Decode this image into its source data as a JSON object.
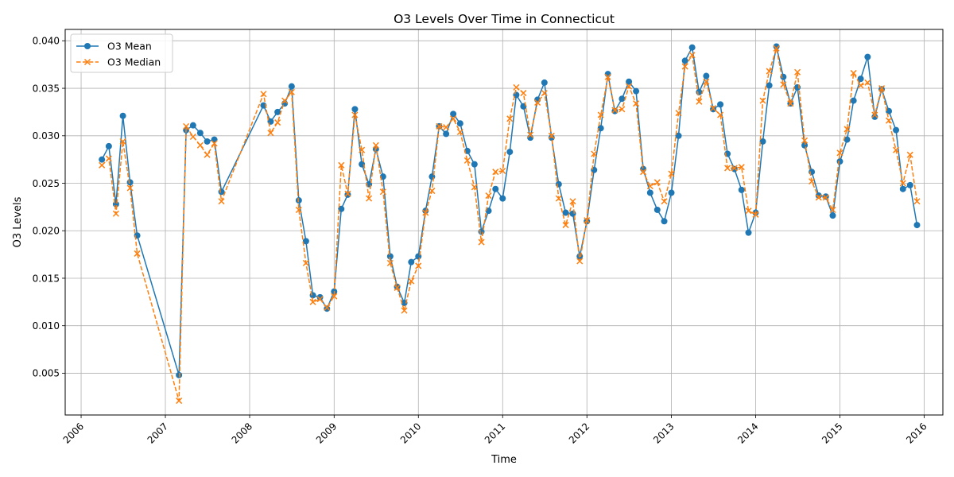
{
  "chart_data": {
    "type": "line",
    "title": "O3 Levels Over Time in Connecticut",
    "xlabel": "Time",
    "ylabel": "O3 Levels",
    "xlim": [
      "2005-10-24",
      "2016-03-22"
    ],
    "ylim": [
      0.0006,
      0.0412
    ],
    "x_ticks": [
      "2006",
      "2007",
      "2008",
      "2009",
      "2010",
      "2011",
      "2012",
      "2013",
      "2014",
      "2015",
      "2016"
    ],
    "y_ticks": [
      "0.005",
      "0.010",
      "0.015",
      "0.020",
      "0.025",
      "0.030",
      "0.035",
      "0.040"
    ],
    "grid": true,
    "legend_position": "top-left",
    "x": [
      "2006-04-01",
      "2006-05-01",
      "2006-06-01",
      "2006-07-01",
      "2006-08-01",
      "2006-09-01",
      "2007-03-01",
      "2007-04-01",
      "2007-05-01",
      "2007-06-01",
      "2007-07-01",
      "2007-08-01",
      "2007-09-01",
      "2008-03-01",
      "2008-04-01",
      "2008-05-01",
      "2008-06-01",
      "2008-07-01",
      "2008-08-01",
      "2008-09-01",
      "2008-10-01",
      "2008-11-01",
      "2008-12-01",
      "2009-01-01",
      "2009-02-01",
      "2009-03-01",
      "2009-04-01",
      "2009-05-01",
      "2009-06-01",
      "2009-07-01",
      "2009-08-01",
      "2009-09-01",
      "2009-10-01",
      "2009-11-01",
      "2009-12-01",
      "2010-01-01",
      "2010-02-01",
      "2010-03-01",
      "2010-04-01",
      "2010-05-01",
      "2010-06-01",
      "2010-07-01",
      "2010-08-01",
      "2010-09-01",
      "2010-10-01",
      "2010-11-01",
      "2010-12-01",
      "2011-01-01",
      "2011-02-01",
      "2011-03-01",
      "2011-04-01",
      "2011-05-01",
      "2011-06-01",
      "2011-07-01",
      "2011-08-01",
      "2011-09-01",
      "2011-10-01",
      "2011-11-01",
      "2011-12-01",
      "2012-01-01",
      "2012-02-01",
      "2012-03-01",
      "2012-04-01",
      "2012-05-01",
      "2012-06-01",
      "2012-07-01",
      "2012-08-01",
      "2012-09-01",
      "2012-10-01",
      "2012-11-01",
      "2012-12-01",
      "2013-01-01",
      "2013-02-01",
      "2013-03-01",
      "2013-04-01",
      "2013-05-01",
      "2013-06-01",
      "2013-07-01",
      "2013-08-01",
      "2013-09-01",
      "2013-10-01",
      "2013-11-01",
      "2013-12-01",
      "2014-01-01",
      "2014-02-01",
      "2014-03-01",
      "2014-04-01",
      "2014-05-01",
      "2014-06-01",
      "2014-07-01",
      "2014-08-01",
      "2014-09-01",
      "2014-10-01",
      "2014-11-01",
      "2014-12-01",
      "2015-01-01",
      "2015-02-01",
      "2015-03-01",
      "2015-04-01",
      "2015-05-01",
      "2015-06-01",
      "2015-07-01",
      "2015-08-01",
      "2015-09-01",
      "2015-10-01",
      "2015-11-01",
      "2015-12-01"
    ],
    "series": [
      {
        "name": "O3 Mean",
        "color": "#1f77b4",
        "style": "solid",
        "marker": "circle",
        "values": [
          0.0275,
          0.0289,
          0.0228,
          0.0321,
          0.0251,
          0.0195,
          0.0048,
          0.0306,
          0.0311,
          0.0303,
          0.0294,
          0.0296,
          0.0241,
          0.0332,
          0.0315,
          0.0325,
          0.0334,
          0.0352,
          0.0232,
          0.0189,
          0.0132,
          0.013,
          0.0118,
          0.0136,
          0.0223,
          0.0238,
          0.0328,
          0.027,
          0.0249,
          0.0286,
          0.0257,
          0.0173,
          0.0141,
          0.0124,
          0.0167,
          0.0173,
          0.0221,
          0.0257,
          0.031,
          0.0302,
          0.0323,
          0.0313,
          0.0284,
          0.027,
          0.0199,
          0.0221,
          0.0244,
          0.0234,
          0.0283,
          0.0343,
          0.0331,
          0.0298,
          0.0338,
          0.0356,
          0.0298,
          0.0249,
          0.0219,
          0.0218,
          0.0173,
          0.021,
          0.0264,
          0.0308,
          0.0365,
          0.0326,
          0.0339,
          0.0357,
          0.0347,
          0.0265,
          0.024,
          0.0222,
          0.021,
          0.024,
          0.03,
          0.0379,
          0.0393,
          0.0346,
          0.0363,
          0.0328,
          0.0333,
          0.0281,
          0.0265,
          0.0243,
          0.0198,
          0.0219,
          0.0294,
          0.0353,
          0.0394,
          0.0362,
          0.0334,
          0.0351,
          0.029,
          0.0262,
          0.0237,
          0.0236,
          0.0216,
          0.0273,
          0.0296,
          0.0337,
          0.036,
          0.0383,
          0.032,
          0.0349,
          0.0326,
          0.0306,
          0.0244,
          0.0248,
          0.0206
        ]
      },
      {
        "name": "O3 Median",
        "color": "#ff7f0e",
        "style": "dashed",
        "marker": "x",
        "values": [
          0.0269,
          0.0276,
          0.0218,
          0.0294,
          0.0245,
          0.0176,
          0.0021,
          0.031,
          0.0299,
          0.029,
          0.028,
          0.0292,
          0.0231,
          0.0344,
          0.0303,
          0.0314,
          0.0337,
          0.0346,
          0.0222,
          0.0166,
          0.0125,
          0.0128,
          0.0119,
          0.0131,
          0.0269,
          0.0239,
          0.0322,
          0.0285,
          0.0234,
          0.029,
          0.0241,
          0.0166,
          0.014,
          0.0116,
          0.0147,
          0.0163,
          0.0219,
          0.0242,
          0.031,
          0.0309,
          0.0318,
          0.0304,
          0.0274,
          0.0246,
          0.0188,
          0.0237,
          0.0262,
          0.0263,
          0.0318,
          0.0351,
          0.0345,
          0.0301,
          0.0335,
          0.0345,
          0.03,
          0.0234,
          0.0206,
          0.0231,
          0.0168,
          0.0211,
          0.0281,
          0.0322,
          0.0362,
          0.0327,
          0.0328,
          0.0352,
          0.0334,
          0.0262,
          0.0247,
          0.0251,
          0.0231,
          0.026,
          0.0324,
          0.0373,
          0.0385,
          0.0336,
          0.0357,
          0.0329,
          0.0322,
          0.0266,
          0.0266,
          0.0267,
          0.0221,
          0.0217,
          0.0337,
          0.0368,
          0.0392,
          0.0354,
          0.0334,
          0.0367,
          0.0295,
          0.0252,
          0.0235,
          0.0235,
          0.0222,
          0.0282,
          0.0307,
          0.0366,
          0.0353,
          0.0356,
          0.0322,
          0.035,
          0.0316,
          0.0285,
          0.025,
          0.028,
          0.0231
        ]
      }
    ]
  }
}
